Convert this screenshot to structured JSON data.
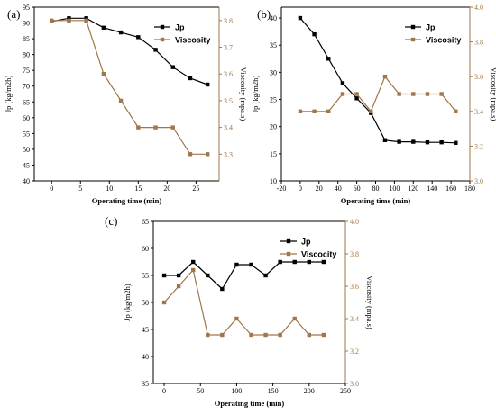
{
  "chart_data": [
    {
      "panel_label": "(a)",
      "type": "line",
      "xlabel": "Operating time (min)",
      "ylabel": "Jp (kg/m2h)",
      "y2label": "Viscosity (mpa.s)",
      "xlim": [
        -3,
        29
      ],
      "ylim": [
        40,
        95
      ],
      "y2lim": [
        3.2,
        3.85
      ],
      "xticks": [
        0,
        5,
        10,
        15,
        20,
        25
      ],
      "yticks": [
        40,
        45,
        50,
        55,
        60,
        65,
        70,
        75,
        80,
        85,
        90,
        95
      ],
      "y2ticks": [
        3.3,
        3.4,
        3.5,
        3.6,
        3.7,
        3.8
      ],
      "y2_tick_decimals": 1,
      "legend_position": "top-right",
      "series": [
        {
          "name": "Jp",
          "axis": "left",
          "color": "#000000",
          "marker": "square",
          "x": [
            0,
            3,
            6,
            9,
            12,
            15,
            18,
            21,
            24,
            27
          ],
          "y": [
            90.5,
            91.5,
            91.5,
            88.5,
            87,
            85.5,
            81.5,
            76,
            72.5,
            70.5
          ]
        },
        {
          "name": "Viscosity",
          "axis": "right",
          "color": "#a0764a",
          "marker": "square",
          "x": [
            0,
            3,
            6,
            9,
            12,
            15,
            18,
            21,
            24,
            27
          ],
          "y": [
            3.8,
            3.8,
            3.8,
            3.6,
            3.5,
            3.4,
            3.4,
            3.4,
            3.3,
            3.3
          ]
        }
      ]
    },
    {
      "panel_label": "(b)",
      "type": "line",
      "xlabel": "Operating time (min)",
      "ylabel": "Jp (kg/m2h)",
      "y2label": "Viscosity (mpa.s)",
      "xlim": [
        -20,
        180
      ],
      "ylim": [
        10,
        42
      ],
      "y2lim": [
        3.0,
        4.0
      ],
      "xticks": [
        -20,
        0,
        20,
        40,
        60,
        80,
        100,
        120,
        140,
        160,
        180
      ],
      "yticks": [
        10,
        15,
        20,
        25,
        30,
        35,
        40
      ],
      "y2ticks": [
        3.0,
        3.2,
        3.4,
        3.6,
        3.8,
        4.0
      ],
      "y2_tick_decimals": 1,
      "legend_position": "top-right",
      "series": [
        {
          "name": "Jp",
          "axis": "left",
          "color": "#000000",
          "marker": "square",
          "x": [
            0,
            15,
            30,
            45,
            60,
            75,
            90,
            105,
            120,
            135,
            150,
            165
          ],
          "y": [
            40,
            37,
            32.5,
            28,
            25.2,
            22.5,
            17.5,
            17.2,
            17.2,
            17.1,
            17.1,
            17
          ]
        },
        {
          "name": "Viscosity",
          "axis": "right",
          "color": "#a0764a",
          "marker": "square",
          "x": [
            0,
            15,
            30,
            45,
            60,
            75,
            90,
            105,
            120,
            135,
            150,
            165
          ],
          "y": [
            3.4,
            3.4,
            3.4,
            3.5,
            3.5,
            3.4,
            3.6,
            3.5,
            3.5,
            3.5,
            3.5,
            3.4
          ]
        }
      ]
    },
    {
      "panel_label": "(c)",
      "type": "line",
      "xlabel": "Operating time (min)",
      "ylabel": "Jp (kg/m2h)",
      "y2label": "Viscosity (mpa.s)",
      "xlim": [
        -15,
        250
      ],
      "ylim": [
        35,
        65
      ],
      "y2lim": [
        3.0,
        4.0
      ],
      "xticks": [
        0,
        50,
        100,
        150,
        200,
        250
      ],
      "yticks": [
        35,
        40,
        45,
        50,
        55,
        60,
        65
      ],
      "y2ticks": [
        3.0,
        3.2,
        3.4,
        3.6,
        3.8,
        4.0
      ],
      "y2_tick_decimals": 1,
      "legend_position": "top-right",
      "series": [
        {
          "name": "Jp",
          "axis": "left",
          "color": "#000000",
          "marker": "square",
          "x": [
            0,
            20,
            40,
            60,
            80,
            100,
            120,
            140,
            160,
            180,
            200,
            220
          ],
          "y": [
            55,
            55,
            57.5,
            55,
            52.5,
            57,
            57,
            55,
            57.5,
            57.5,
            57.5,
            57.5
          ]
        },
        {
          "name": "Viscocity",
          "axis": "right",
          "color": "#a0764a",
          "marker": "square",
          "x": [
            0,
            20,
            40,
            60,
            80,
            100,
            120,
            140,
            160,
            180,
            200,
            220
          ],
          "y": [
            3.5,
            3.6,
            3.7,
            3.3,
            3.3,
            3.4,
            3.3,
            3.3,
            3.3,
            3.4,
            3.3,
            3.3
          ]
        }
      ]
    }
  ]
}
